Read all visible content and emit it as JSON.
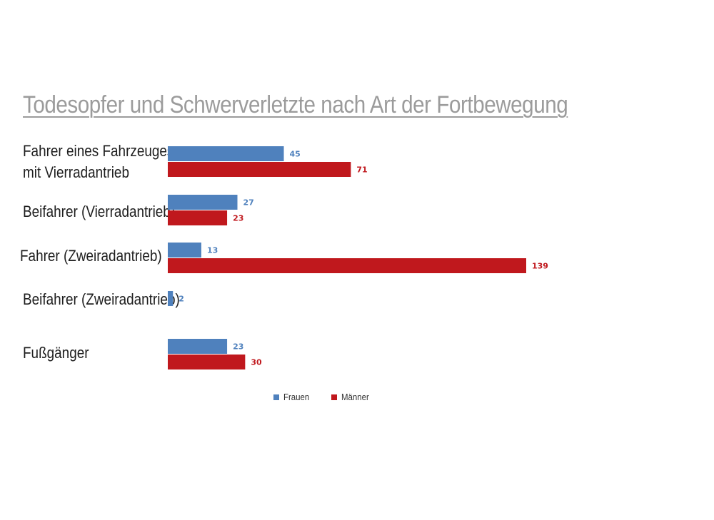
{
  "chart_data": {
    "type": "bar",
    "orientation": "horizontal",
    "title": "Todesopfer und Schwerverletzte nach Art der Fortbewegung",
    "categories": [
      [
        "Fahrer eines Fahrzeuges",
        "mit Vierradantrieb"
      ],
      [
        "Beifahrer (Vierradantrieb)"
      ],
      [
        "Fahrer (Zweiradantrieb)"
      ],
      [
        "Beifahrer (Zweiradantrieb)"
      ],
      [
        "Fußgänger"
      ]
    ],
    "series": [
      {
        "name": "Frauen",
        "color": "#4f81bd",
        "values": [
          45,
          27,
          13,
          2,
          23
        ]
      },
      {
        "name": "Männer",
        "color": "#c0181d",
        "values": [
          71,
          23,
          139,
          null,
          30
        ]
      }
    ],
    "xlim": [
      0,
      139
    ],
    "grid": false,
    "legend_position": "bottom"
  }
}
